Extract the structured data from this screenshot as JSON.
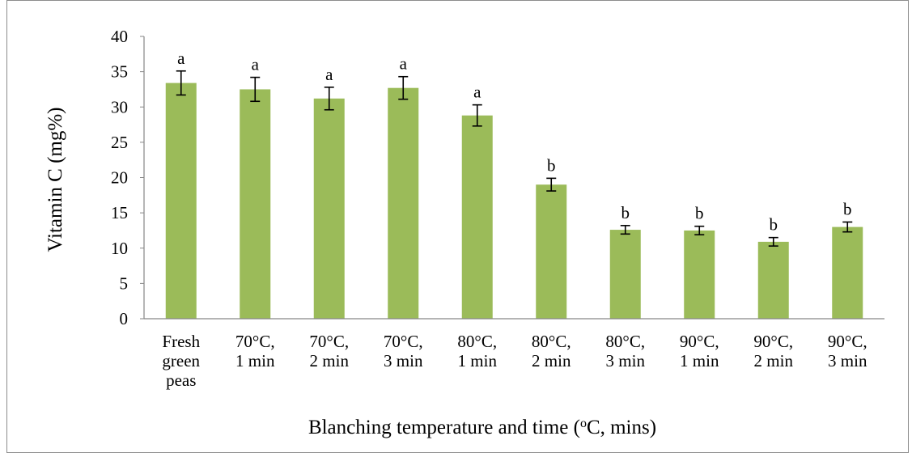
{
  "chart_data": {
    "type": "bar",
    "categories": [
      [
        "Fresh",
        "green",
        "peas"
      ],
      [
        "70°C,",
        "1 min"
      ],
      [
        "70°C,",
        "2 min"
      ],
      [
        "70°C,",
        "3 min"
      ],
      [
        "80°C,",
        "1 min"
      ],
      [
        "80°C,",
        "2 min"
      ],
      [
        "80°C,",
        "3 min"
      ],
      [
        "90°C,",
        "1 min"
      ],
      [
        "90°C,",
        "2 min"
      ],
      [
        "90°C,",
        "3 min"
      ]
    ],
    "values": [
      33.4,
      32.5,
      31.2,
      32.7,
      28.8,
      19.0,
      12.6,
      12.5,
      10.9,
      13.0
    ],
    "errors": [
      1.7,
      1.7,
      1.6,
      1.6,
      1.5,
      0.9,
      0.6,
      0.6,
      0.6,
      0.7
    ],
    "significance_letters": [
      "a",
      "a",
      "a",
      "a",
      "a",
      "b",
      "b",
      "b",
      "b",
      "b"
    ],
    "title": "",
    "ylabel": "Vitamin C (mg%)",
    "xlabel": {
      "before": "Blanching temperature and time (",
      "sup": "o",
      "after": "C, mins)"
    },
    "ylim": [
      0,
      40
    ],
    "yticks": [
      0,
      5,
      10,
      15,
      20,
      25,
      30,
      35,
      40
    ],
    "grid": false,
    "legend": "none",
    "bar_color": "#9bbb59",
    "axis_color": "#868686"
  }
}
